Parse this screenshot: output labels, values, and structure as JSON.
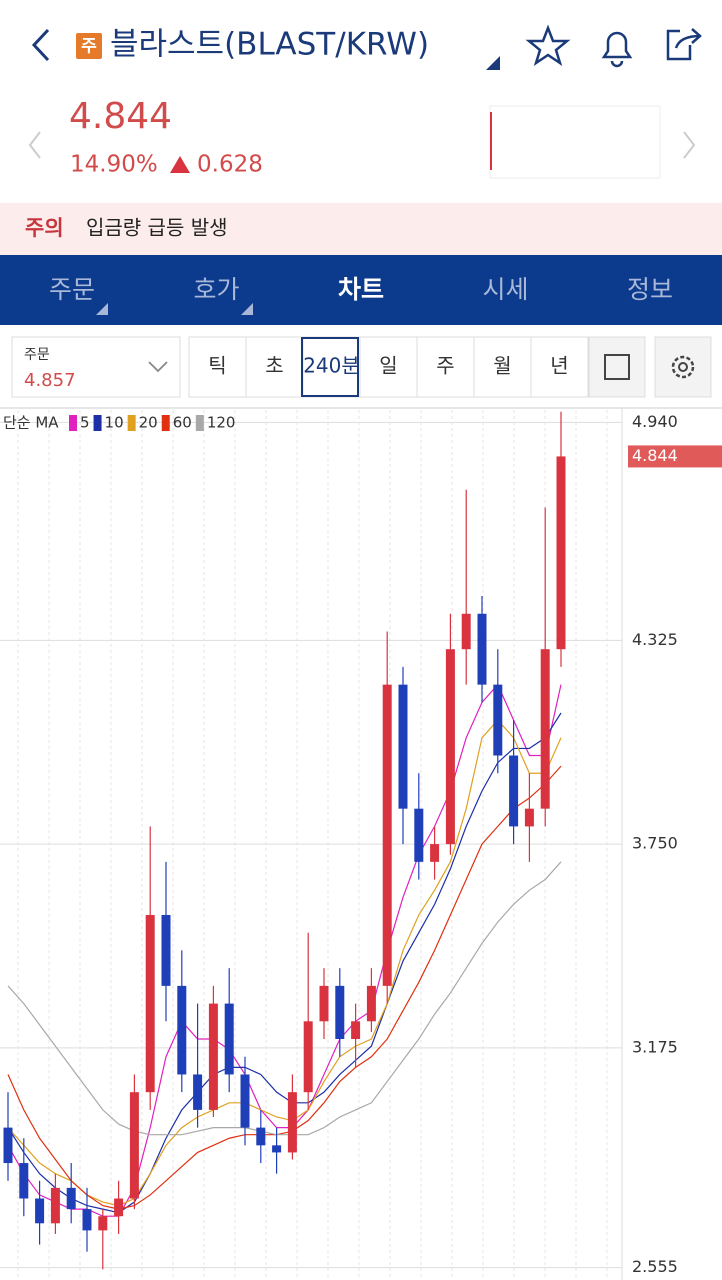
{
  "header": {
    "badge": "주",
    "title": "블라스트(BLAST/KRW)"
  },
  "quote": {
    "price": "4.844",
    "change_pct": "14.90%",
    "change": "0.628"
  },
  "notice": {
    "label": "주의",
    "text": "입금량 급등 발생"
  },
  "tabs": [
    "주문",
    "호가",
    "차트",
    "시세",
    "정보"
  ],
  "order": {
    "label": "주문",
    "value": "4.857"
  },
  "periods": [
    "틱",
    "초",
    "240분",
    "일",
    "주",
    "월",
    "년"
  ],
  "legend": {
    "label": "단순 MA"
  },
  "chart_data": {
    "type": "candlestick",
    "ylim": [
      2.52,
      4.975
    ],
    "yticks": [
      2.555,
      3.175,
      {
        "value": 3.75,
        "label": "3.750"
      },
      4.325,
      {
        "value": 4.94,
        "label": "4.940"
      }
    ],
    "grid": true,
    "up_color": "#d9333f",
    "down_color": "#1f3fb8",
    "last_price": 4.844,
    "last_price_color": "#e05a5a",
    "open": [
      2.95,
      2.85,
      2.75,
      2.68,
      2.78,
      2.72,
      2.66,
      2.7,
      2.75,
      3.05,
      3.55,
      3.35,
      3.1,
      3.0,
      3.3,
      3.1,
      2.95,
      2.9,
      2.88,
      3.05,
      3.25,
      3.35,
      3.2,
      3.25,
      3.35,
      4.2,
      3.85,
      3.7,
      3.75,
      4.3,
      4.4,
      4.2,
      4.0,
      3.8,
      3.85,
      4.3
    ],
    "high": [
      3.05,
      2.92,
      2.8,
      2.82,
      2.85,
      2.78,
      2.72,
      2.8,
      3.1,
      3.8,
      3.7,
      3.45,
      3.3,
      3.35,
      3.4,
      3.15,
      3.0,
      2.95,
      3.1,
      3.5,
      3.4,
      3.4,
      3.3,
      3.4,
      4.35,
      4.25,
      3.95,
      3.8,
      4.4,
      4.75,
      4.45,
      4.3,
      4.1,
      3.95,
      4.7,
      4.97
    ],
    "low": [
      2.8,
      2.7,
      2.62,
      2.65,
      2.68,
      2.6,
      2.55,
      2.65,
      2.72,
      3.0,
      3.25,
      3.05,
      2.95,
      2.98,
      3.05,
      2.9,
      2.85,
      2.82,
      2.86,
      3.0,
      3.2,
      3.15,
      3.12,
      3.22,
      3.3,
      3.75,
      3.65,
      3.65,
      3.72,
      4.2,
      4.15,
      3.95,
      3.75,
      3.7,
      3.8,
      4.25
    ],
    "close": [
      2.85,
      2.75,
      2.68,
      2.78,
      2.72,
      2.66,
      2.7,
      2.75,
      3.05,
      3.55,
      3.35,
      3.1,
      3.0,
      3.3,
      3.1,
      2.95,
      2.9,
      2.88,
      3.05,
      3.25,
      3.35,
      3.2,
      3.25,
      3.35,
      4.2,
      3.85,
      3.7,
      3.75,
      4.3,
      4.4,
      4.2,
      4.0,
      3.8,
      3.85,
      4.3,
      4.844
    ],
    "series": [
      {
        "name": "5",
        "color": "#e020c0",
        "values": [
          2.9,
          2.82,
          2.76,
          2.74,
          2.72,
          2.72,
          2.7,
          2.7,
          2.78,
          2.95,
          3.15,
          3.25,
          3.2,
          3.2,
          3.17,
          3.1,
          3.0,
          2.95,
          2.95,
          3.0,
          3.1,
          3.2,
          3.25,
          3.28,
          3.45,
          3.6,
          3.72,
          3.8,
          3.9,
          4.05,
          4.15,
          4.2,
          4.1,
          4.0,
          4.0,
          4.2
        ]
      },
      {
        "name": "10",
        "color": "#1c2fa8",
        "values": [
          2.95,
          2.88,
          2.82,
          2.78,
          2.75,
          2.73,
          2.72,
          2.71,
          2.74,
          2.82,
          2.92,
          3.0,
          3.05,
          3.1,
          3.12,
          3.12,
          3.1,
          3.05,
          3.02,
          3.02,
          3.05,
          3.1,
          3.14,
          3.18,
          3.3,
          3.42,
          3.5,
          3.58,
          3.68,
          3.8,
          3.9,
          3.98,
          4.02,
          4.02,
          4.05,
          4.12
        ]
      },
      {
        "name": "20",
        "color": "#e0a020",
        "values": [
          2.95,
          2.9,
          2.85,
          2.82,
          2.8,
          2.76,
          2.74,
          2.73,
          2.75,
          2.82,
          2.9,
          2.95,
          2.98,
          3.0,
          3.02,
          3.02,
          3.0,
          2.98,
          2.97,
          3.0,
          3.08,
          3.15,
          3.18,
          3.2,
          3.3,
          3.45,
          3.55,
          3.62,
          3.7,
          3.85,
          4.05,
          4.1,
          4.05,
          3.95,
          3.95,
          4.05
        ]
      },
      {
        "name": "60",
        "color": "#e03010",
        "values": [
          3.1,
          3.0,
          2.92,
          2.86,
          2.8,
          2.76,
          2.73,
          2.72,
          2.73,
          2.76,
          2.8,
          2.84,
          2.88,
          2.9,
          2.92,
          2.93,
          2.93,
          2.93,
          2.94,
          2.97,
          3.02,
          3.08,
          3.12,
          3.15,
          3.2,
          3.28,
          3.36,
          3.45,
          3.55,
          3.65,
          3.75,
          3.8,
          3.85,
          3.88,
          3.92,
          3.97
        ]
      },
      {
        "name": "120",
        "color": "#a8a8a8",
        "values": [
          3.35,
          3.3,
          3.24,
          3.18,
          3.12,
          3.06,
          3.0,
          2.96,
          2.94,
          2.93,
          2.93,
          2.93,
          2.94,
          2.95,
          2.95,
          2.95,
          2.94,
          2.93,
          2.93,
          2.93,
          2.95,
          2.98,
          3.0,
          3.02,
          3.08,
          3.14,
          3.2,
          3.27,
          3.33,
          3.4,
          3.47,
          3.53,
          3.58,
          3.62,
          3.65,
          3.7
        ]
      }
    ]
  }
}
